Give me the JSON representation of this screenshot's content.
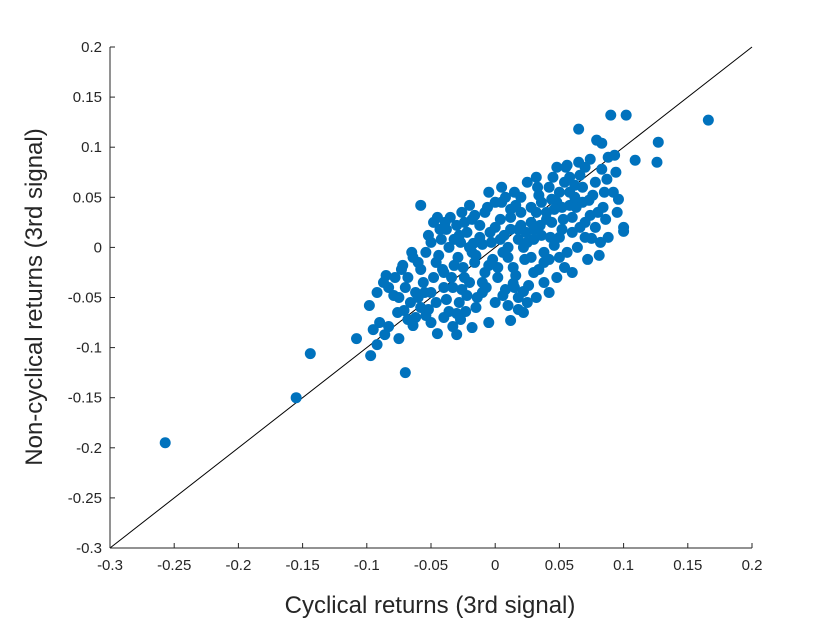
{
  "chart_data": {
    "type": "scatter",
    "title": "",
    "xlabel": "Cyclical returns (3rd signal)",
    "ylabel": "Non-cyclical returns (3rd signal)",
    "xlim": [
      -0.3,
      0.2
    ],
    "ylim": [
      -0.3,
      0.2
    ],
    "xticks": [
      "-0.3",
      "-0.25",
      "-0.2",
      "-0.15",
      "-0.1",
      "-0.05",
      "0",
      "0.05",
      "0.1",
      "0.15",
      "0.2"
    ],
    "yticks": [
      "-0.3",
      "-0.25",
      "-0.2",
      "-0.15",
      "-0.1",
      "-0.05",
      "0",
      "0.05",
      "0.1",
      "0.15",
      "0.2"
    ],
    "grid": false,
    "reference_line": {
      "from": [
        -0.3,
        -0.3
      ],
      "to": [
        0.2,
        0.2
      ],
      "color": "#000000"
    },
    "marker_color": "#0072BD",
    "points": [
      [
        -0.257,
        -0.195
      ],
      [
        -0.155,
        -0.15
      ],
      [
        -0.144,
        -0.106
      ],
      [
        -0.07,
        -0.125
      ],
      [
        -0.097,
        -0.108
      ],
      [
        -0.108,
        -0.091
      ],
      [
        -0.092,
        -0.097
      ],
      [
        -0.086,
        -0.087
      ],
      [
        -0.083,
        -0.079
      ],
      [
        -0.075,
        -0.091
      ],
      [
        -0.095,
        -0.082
      ],
      [
        -0.09,
        -0.075
      ],
      [
        -0.098,
        -0.058
      ],
      [
        -0.092,
        -0.045
      ],
      [
        -0.087,
        -0.035
      ],
      [
        -0.083,
        -0.04
      ],
      [
        -0.078,
        -0.03
      ],
      [
        -0.085,
        -0.028
      ],
      [
        -0.075,
        -0.05
      ],
      [
        -0.071,
        -0.063
      ],
      [
        -0.068,
        -0.072
      ],
      [
        -0.064,
        -0.078
      ],
      [
        -0.062,
        -0.07
      ],
      [
        -0.058,
        -0.06
      ],
      [
        -0.06,
        -0.05
      ],
      [
        -0.055,
        -0.045
      ],
      [
        -0.052,
        -0.062
      ],
      [
        -0.05,
        -0.075
      ],
      [
        -0.045,
        -0.086
      ],
      [
        -0.04,
        -0.07
      ],
      [
        -0.036,
        -0.064
      ],
      [
        -0.033,
        -0.079
      ],
      [
        -0.03,
        -0.087
      ],
      [
        -0.027,
        -0.072
      ],
      [
        -0.023,
        -0.064
      ],
      [
        -0.018,
        -0.08
      ],
      [
        -0.005,
        -0.075
      ],
      [
        0.012,
        -0.073
      ],
      [
        0.022,
        -0.065
      ],
      [
        0.032,
        -0.05
      ],
      [
        -0.068,
        -0.03
      ],
      [
        -0.072,
        -0.018
      ],
      [
        -0.064,
        -0.01
      ],
      [
        -0.058,
        -0.022
      ],
      [
        -0.054,
        -0.005
      ],
      [
        -0.05,
        0.005
      ],
      [
        -0.046,
        -0.015
      ],
      [
        -0.042,
        0.008
      ],
      [
        -0.04,
        -0.025
      ],
      [
        -0.038,
        0.018
      ],
      [
        -0.035,
        0.03
      ],
      [
        -0.033,
        -0.04
      ],
      [
        -0.03,
        0.022
      ],
      [
        -0.027,
        0.005
      ],
      [
        -0.025,
        -0.02
      ],
      [
        -0.022,
        0.015
      ],
      [
        -0.02,
        -0.035
      ],
      [
        -0.018,
        0.028
      ],
      [
        -0.015,
        -0.008
      ],
      [
        -0.012,
        0.01
      ],
      [
        -0.01,
        -0.045
      ],
      [
        -0.008,
        0.035
      ],
      [
        -0.005,
        -0.018
      ],
      [
        -0.003,
        0.005
      ],
      [
        0.0,
        0.02
      ],
      [
        0.002,
        -0.03
      ],
      [
        0.005,
        0.045
      ],
      [
        0.007,
        0.012
      ],
      [
        0.01,
        -0.01
      ],
      [
        0.012,
        0.03
      ],
      [
        0.015,
        -0.04
      ],
      [
        0.018,
        0.018
      ],
      [
        0.02,
        0.05
      ],
      [
        0.023,
        -0.012
      ],
      [
        0.025,
        0.005
      ],
      [
        0.028,
        0.04
      ],
      [
        0.03,
        -0.025
      ],
      [
        0.033,
        0.06
      ],
      [
        0.035,
        0.022
      ],
      [
        0.038,
        -0.015
      ],
      [
        0.04,
        0.035
      ],
      [
        0.043,
        0.01
      ],
      [
        0.045,
        0.07
      ],
      [
        0.048,
        0.045
      ],
      [
        0.05,
        -0.01
      ],
      [
        0.053,
        0.028
      ],
      [
        0.055,
        0.08
      ],
      [
        0.058,
        0.055
      ],
      [
        0.06,
        0.015
      ],
      [
        0.063,
        0.04
      ],
      [
        0.065,
        0.085
      ],
      [
        0.068,
        0.06
      ],
      [
        0.07,
        0.025
      ],
      [
        0.073,
        0.047
      ],
      [
        0.075,
        0.009
      ],
      [
        0.078,
        0.065
      ],
      [
        0.08,
        0.035
      ],
      [
        0.083,
        0.078
      ],
      [
        0.085,
        0.055
      ],
      [
        0.088,
        0.09
      ],
      [
        0.09,
        0.132
      ],
      [
        0.102,
        0.132
      ],
      [
        0.065,
        0.118
      ],
      [
        0.079,
        0.107
      ],
      [
        0.083,
        0.104
      ],
      [
        0.093,
        0.092
      ],
      [
        0.109,
        0.087
      ],
      [
        0.127,
        0.105
      ],
      [
        0.126,
        0.085
      ],
      [
        0.166,
        0.127
      ],
      [
        0.1,
        0.02
      ],
      [
        0.1,
        0.016
      ],
      [
        0.088,
        0.01
      ],
      [
        0.092,
        0.055
      ],
      [
        0.095,
        0.035
      ],
      [
        0.06,
        -0.025
      ],
      [
        0.054,
        -0.02
      ],
      [
        0.048,
        -0.03
      ],
      [
        0.042,
        -0.045
      ],
      [
        0.038,
        -0.035
      ],
      [
        0.025,
        -0.055
      ],
      [
        0.018,
        -0.05
      ],
      [
        0.01,
        -0.058
      ],
      [
        0.0,
        -0.055
      ],
      [
        -0.028,
        -0.055
      ],
      [
        -0.015,
        -0.06
      ],
      [
        0.015,
        0.055
      ],
      [
        0.005,
        0.06
      ],
      [
        -0.005,
        0.055
      ],
      [
        -0.02,
        0.042
      ],
      [
        -0.045,
        0.03
      ],
      [
        -0.058,
        0.042
      ],
      [
        -0.048,
        0.025
      ],
      [
        0.025,
        0.065
      ],
      [
        0.032,
        0.07
      ],
      [
        0.042,
        0.06
      ],
      [
        0.05,
        0.055
      ],
      [
        0.058,
        0.07
      ],
      [
        0.066,
        0.072
      ],
      [
        0.074,
        0.088
      ],
      [
        0.052,
        0.018
      ],
      [
        0.046,
        0.002
      ],
      [
        0.038,
        -0.005
      ],
      [
        0.03,
        0.008
      ],
      [
        0.022,
        0.0
      ],
      [
        0.014,
        -0.02
      ],
      [
        0.006,
        -0.005
      ],
      [
        -0.002,
        -0.012
      ],
      [
        -0.008,
        -0.025
      ],
      [
        -0.016,
        -0.015
      ],
      [
        -0.024,
        -0.03
      ],
      [
        -0.032,
        -0.018
      ],
      [
        -0.04,
        -0.04
      ],
      [
        -0.048,
        -0.03
      ],
      [
        -0.056,
        -0.035
      ],
      [
        -0.062,
        -0.045
      ],
      [
        -0.036,
        0.0
      ],
      [
        -0.028,
        0.012
      ],
      [
        -0.02,
        0.0
      ],
      [
        -0.012,
        0.022
      ],
      [
        -0.004,
        0.015
      ],
      [
        0.004,
        0.028
      ],
      [
        0.012,
        0.018
      ],
      [
        0.02,
        0.035
      ],
      [
        0.028,
        0.025
      ],
      [
        0.036,
        0.045
      ],
      [
        0.044,
        0.025
      ],
      [
        0.052,
        0.04
      ],
      [
        0.06,
        0.03
      ],
      [
        0.068,
        0.045
      ],
      [
        0.076,
        0.052
      ],
      [
        0.084,
        0.04
      ],
      [
        -0.044,
        -0.008
      ],
      [
        -0.038,
        -0.052
      ],
      [
        -0.026,
        -0.042
      ],
      [
        -0.014,
        -0.05
      ],
      [
        0.008,
        -0.042
      ],
      [
        0.016,
        -0.028
      ],
      [
        0.026,
        -0.038
      ],
      [
        0.034,
        -0.022
      ],
      [
        0.042,
        -0.012
      ],
      [
        0.05,
        0.01
      ],
      [
        0.056,
        -0.005
      ],
      [
        0.064,
        0.0
      ],
      [
        0.07,
        0.01
      ],
      [
        0.078,
        0.02
      ],
      [
        0.086,
        0.028
      ],
      [
        0.072,
        -0.012
      ],
      [
        0.081,
        -0.008
      ],
      [
        -0.066,
        -0.055
      ],
      [
        -0.07,
        -0.04
      ],
      [
        -0.076,
        -0.065
      ],
      [
        -0.054,
        -0.068
      ],
      [
        -0.046,
        -0.055
      ],
      [
        -0.034,
        -0.03
      ],
      [
        -0.022,
        -0.048
      ],
      [
        -0.01,
        -0.035
      ],
      [
        0.002,
        -0.02
      ],
      [
        0.01,
        0.0
      ],
      [
        0.018,
        0.008
      ],
      [
        0.024,
        0.015
      ],
      [
        -0.016,
        0.032
      ],
      [
        -0.024,
        0.025
      ],
      [
        -0.032,
        0.008
      ],
      [
        -0.006,
        0.04
      ],
      [
        0.008,
        0.05
      ],
      [
        0.016,
        0.042
      ],
      [
        0.034,
        0.052
      ],
      [
        0.048,
        0.08
      ],
      [
        0.056,
        0.082
      ],
      [
        0.062,
        0.062
      ],
      [
        0.07,
        0.08
      ],
      [
        0.04,
        0.028
      ],
      [
        0.03,
        0.018
      ],
      [
        -0.05,
        -0.045
      ],
      [
        -0.06,
        -0.015
      ],
      [
        -0.052,
        0.012
      ],
      [
        -0.043,
        0.018
      ],
      [
        0.018,
        -0.062
      ],
      [
        0.028,
        -0.01
      ],
      [
        0.046,
        0.038
      ],
      [
        0.004,
        0.008
      ],
      [
        -0.018,
        -0.005
      ],
      [
        -0.01,
        0.003
      ],
      [
        0.036,
        0.012
      ],
      [
        0.058,
        0.042
      ],
      [
        0.066,
        0.02
      ],
      [
        0.074,
        0.032
      ],
      [
        0.087,
        0.068
      ],
      [
        0.094,
        0.075
      ],
      [
        0.096,
        0.048
      ],
      [
        0.082,
        0.005
      ],
      [
        -0.079,
        -0.048
      ],
      [
        -0.073,
        -0.022
      ],
      [
        -0.065,
        -0.005
      ],
      [
        -0.03,
        -0.066
      ],
      [
        -0.039,
        0.025
      ],
      [
        -0.026,
        0.035
      ],
      [
        0.0,
        0.045
      ],
      [
        0.032,
        0.035
      ],
      [
        0.012,
        0.038
      ],
      [
        0.02,
        0.022
      ],
      [
        0.044,
        0.048
      ],
      [
        0.054,
        0.065
      ],
      [
        0.062,
        0.05
      ],
      [
        -0.041,
        -0.022
      ],
      [
        -0.029,
        -0.01
      ],
      [
        -0.017,
        0.004
      ],
      [
        -0.007,
        -0.04
      ],
      [
        0.006,
        -0.048
      ],
      [
        0.014,
        -0.036
      ],
      [
        0.022,
        -0.044
      ]
    ]
  }
}
